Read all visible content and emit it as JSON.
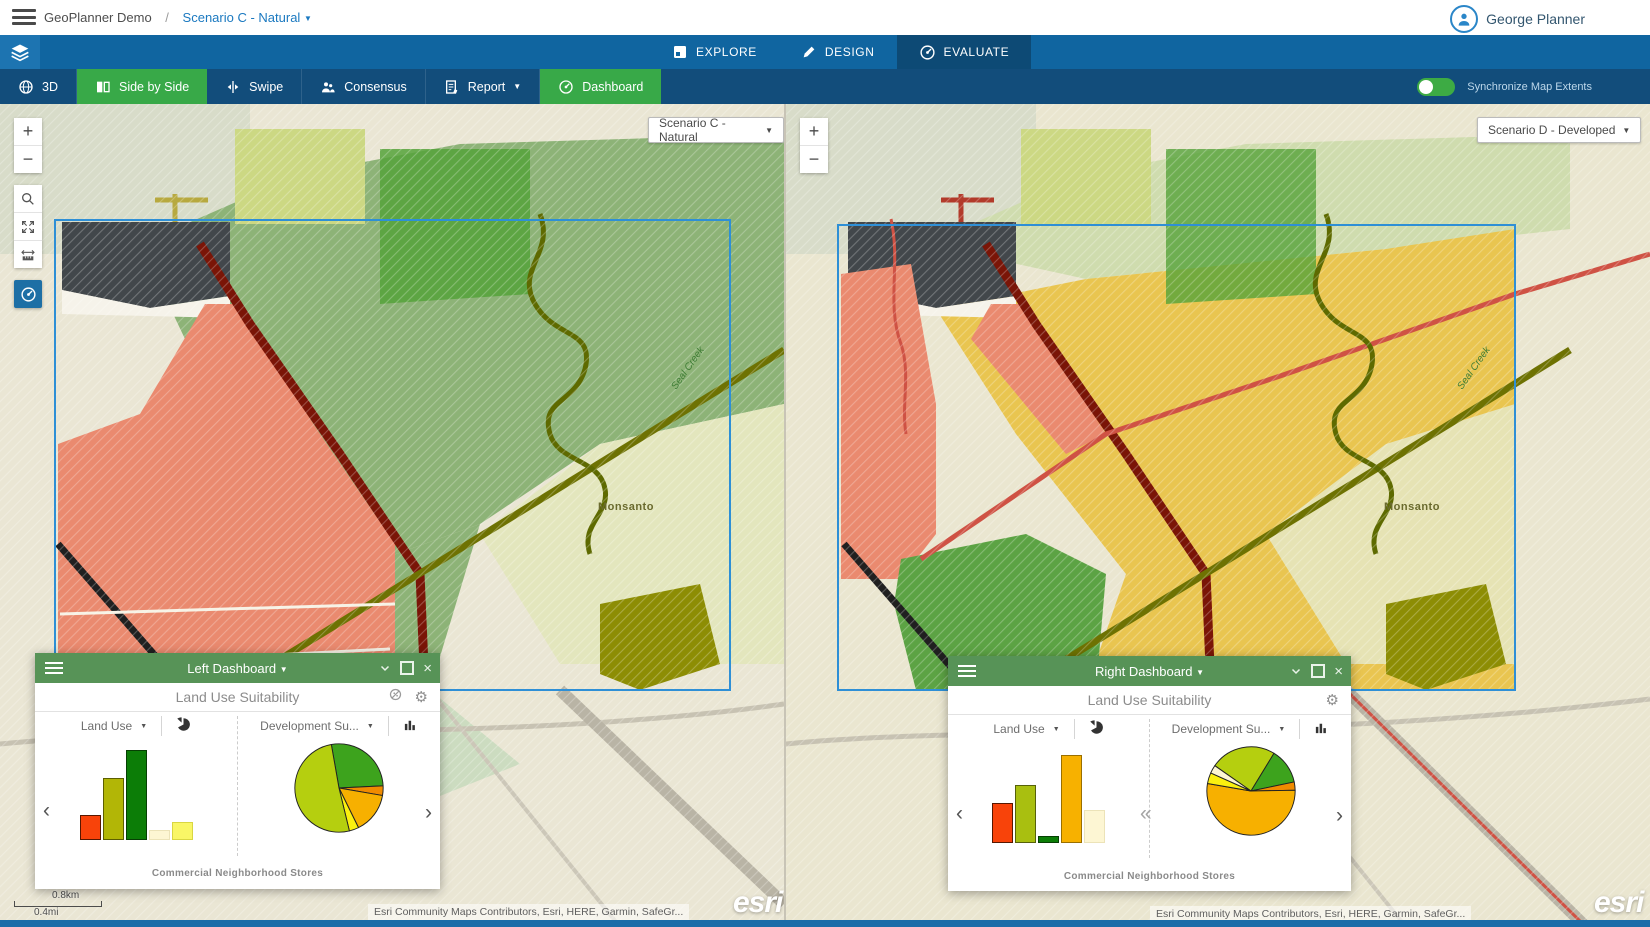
{
  "topbar": {
    "breadcrumb_root": "GeoPlanner Demo",
    "breadcrumb_sep": "/",
    "scenario_link": "Scenario C - Natural",
    "user_name": "George Planner"
  },
  "nav": {
    "tabs": [
      {
        "label": "EXPLORE"
      },
      {
        "label": "DESIGN"
      },
      {
        "label": "EVALUATE",
        "active": true
      }
    ]
  },
  "toolbar": {
    "btn_3d": "3D",
    "btn_side_by_side": "Side by Side",
    "btn_swipe": "Swipe",
    "btn_consensus": "Consensus",
    "btn_report": "Report",
    "btn_dashboard": "Dashboard",
    "sync_label": "Synchronize Map Extents",
    "sync_on": true
  },
  "left_map": {
    "chip": "Scenario C - Natural",
    "label_monsanto": "Monsanto",
    "label_creek": "Seal Creek",
    "scale_km": "0.8km",
    "scale_mi": "0.4mi",
    "attribution": "Esri Community Maps Contributors, Esri, HERE, Garmin, SafeGr...",
    "logo": "esri"
  },
  "right_map": {
    "chip": "Scenario D - Developed",
    "label_monsanto": "Monsanto",
    "label_creek": "Seal Creek",
    "attribution": "Esri Community Maps Contributors, Esri, HERE, Garmin, SafeGr...",
    "logo": "esri"
  },
  "left_dashboard": {
    "title": "Left Dashboard",
    "subtitle": "Land Use Suitability",
    "cards": [
      {
        "label": "Land Use"
      },
      {
        "label": "Development Su..."
      }
    ],
    "footer": "Commercial Neighborhood Stores"
  },
  "right_dashboard": {
    "title": "Right Dashboard",
    "subtitle": "Land Use Suitability",
    "cards": [
      {
        "label": "Land Use"
      },
      {
        "label": "Development Su..."
      }
    ],
    "footer": "Commercial Neighborhood Stores"
  },
  "icons": {
    "close": "×",
    "caret_down": "▼",
    "chevron_left": "‹",
    "chevron_right": "›",
    "chevrons_left": "«",
    "gear": "⚙",
    "plus": "+",
    "minus": "−"
  },
  "colors": {
    "nav_blue": "#1065a0",
    "toolbar_blue": "#124d7b",
    "active_tab_blue": "#0d4a75",
    "tab_accent_orange": "#c64a1f",
    "action_green": "#38a948",
    "dash_header_green": "#579357",
    "link_blue": "#1b79c0",
    "esri_footer_blue": "#1b6ca8"
  },
  "chart_data": [
    {
      "id": "left-dashboard-land-use",
      "type": "bar",
      "title": "Land Use",
      "context": "Left Dashboard — Commercial Neighborhood Stores",
      "unit": "relative-height-px",
      "categories": [
        "red",
        "olive",
        "dark-green",
        "cream",
        "yellow"
      ],
      "values": [
        25,
        62,
        90,
        10,
        18
      ],
      "colors": [
        "#f8430a",
        "#b2b606",
        "#0c7d07",
        "#fdf6d3",
        "#f9f666"
      ],
      "borders": [
        "#571700",
        "#5c5e00",
        "#063f03",
        "#ece3b8",
        "#d9d642"
      ]
    },
    {
      "id": "left-dashboard-development-suitability",
      "type": "pie",
      "title": "Development Su...",
      "context": "Left Dashboard — Commercial Neighborhood Stores",
      "start_angle": -10,
      "slices": [
        {
          "name": "green",
          "value": 27,
          "color": "#3da31d"
        },
        {
          "name": "orange",
          "value": 3.5,
          "color": "#f08b00"
        },
        {
          "name": "amber",
          "value": 15,
          "color": "#f7b000"
        },
        {
          "name": "yellow",
          "value": 3.5,
          "color": "#fbf00f"
        },
        {
          "name": "yellow-green",
          "value": 51,
          "color": "#b5cf0f"
        }
      ]
    },
    {
      "id": "right-dashboard-land-use",
      "type": "bar",
      "title": "Land Use",
      "context": "Right Dashboard — Commercial Neighborhood Stores",
      "unit": "relative-height-px",
      "categories": [
        "red",
        "yellow-green",
        "dark-green",
        "amber",
        "cream"
      ],
      "values": [
        40,
        58,
        7,
        88,
        33
      ],
      "colors": [
        "#f8430a",
        "#a9bf10",
        "#0c7d07",
        "#f7b100",
        "#fdf6d3"
      ],
      "borders": [
        "#571700",
        "#56610a",
        "#063f03",
        "#9a6f00",
        "#ece3b8"
      ]
    },
    {
      "id": "right-dashboard-development-suitability",
      "type": "pie",
      "title": "Development Su...",
      "context": "Right Dashboard — Commercial Neighborhood Stores",
      "start_angle": -55,
      "slices": [
        {
          "name": "yellow-green",
          "value": 24,
          "color": "#b5cf0f"
        },
        {
          "name": "green",
          "value": 13,
          "color": "#3da31d"
        },
        {
          "name": "orange",
          "value": 3,
          "color": "#f08b00"
        },
        {
          "name": "amber",
          "value": 53,
          "color": "#f7b000"
        },
        {
          "name": "yellow",
          "value": 4,
          "color": "#fbf00f"
        },
        {
          "name": "cream",
          "value": 3,
          "color": "#fdf6d3"
        }
      ]
    }
  ]
}
